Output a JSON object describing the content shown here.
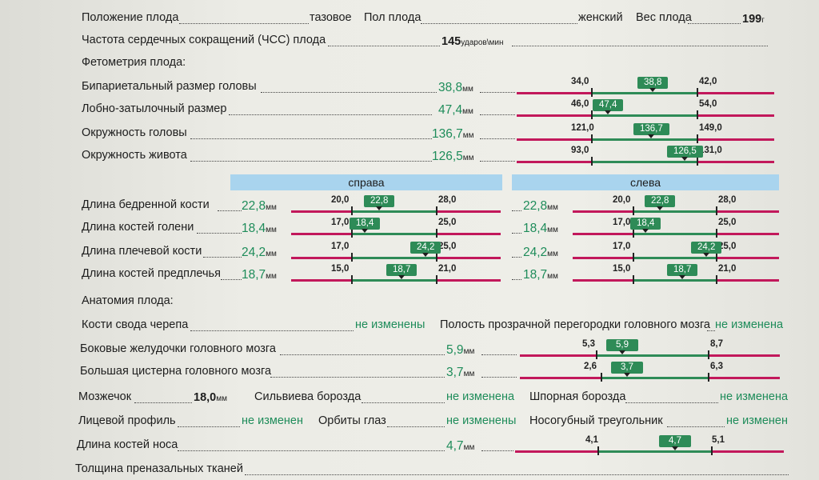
{
  "general": {
    "position_label": "Положение плода",
    "position_value": "тазовое",
    "sex_label": "Пол плода",
    "sex_value": "женский",
    "weight_label": "Вес плода",
    "weight_value": "199",
    "weight_unit": "г",
    "hr_label": "Частота сердечных сокращений (ЧСС) плода",
    "hr_value": "145",
    "hr_unit": "ударов\\мин",
    "fetometry_title": "Фетометрия плода:"
  },
  "fetometry": [
    {
      "label": "Бипариетальный размер головы",
      "value": "38,8",
      "unit": "мм",
      "min": "34,0",
      "max": "42,0",
      "mark": "38,8"
    },
    {
      "label": "Лобно-затылочный размер",
      "value": "47,4",
      "unit": "мм",
      "min": "46,0",
      "max": "54,0",
      "mark": "47,4"
    },
    {
      "label": "Окружность головы",
      "value": "136,7",
      "unit": "мм",
      "min": "121,0",
      "max": "149,0",
      "mark": "136,7"
    },
    {
      "label": "Окружность живота",
      "value": "126,5",
      "unit": "мм",
      "min": "93,0",
      "max": "131,0",
      "mark": "126,5"
    }
  ],
  "limbs": {
    "right_header": "справа",
    "left_header": "слева",
    "rows": [
      {
        "label": "Длина бедренной кости",
        "right": "22,8",
        "left": "22,8",
        "unit": "мм",
        "min": "20,0",
        "max": "28,0",
        "mark": "22,8"
      },
      {
        "label": "Длина костей голени",
        "right": "18,4",
        "left": "18,4",
        "unit": "мм",
        "min": "17,0",
        "max": "25,0",
        "mark": "18,4"
      },
      {
        "label": "Длина плечевой кости",
        "right": "24,2",
        "left": "24,2",
        "unit": "мм",
        "min": "17,0",
        "max": "25,0",
        "mark": "24,2"
      },
      {
        "label": "Длина костей предплечья",
        "right": "18,7",
        "left": "18,7",
        "unit": "мм",
        "min": "15,0",
        "max": "21,0",
        "mark": "18,7"
      }
    ]
  },
  "anatomy": {
    "title": "Анатомия плода:",
    "skull_label": "Кости свода черепа",
    "skull_value": "не изменены",
    "septum_label": "Полость прозрачной перегородки головного мозга",
    "septum_value": "не изменена",
    "ventricles_label": "Боковые желудочки головного мозга",
    "ventricles_value": "5,9",
    "ventricles_unit": "мм",
    "ventricles_min": "5,3",
    "ventricles_max": "8,7",
    "ventricles_mark": "5,9",
    "cistern_label": "Большая цистерна головного мозга",
    "cistern_value": "3,7",
    "cistern_unit": "мм",
    "cistern_min": "2,6",
    "cistern_max": "6,3",
    "cistern_mark": "3,7",
    "cerebellum_label": "Мозжечок",
    "cerebellum_value": "18,0",
    "cerebellum_unit": "мм",
    "sylvian_label": "Сильвиева борозда",
    "sylvian_value": "не изменена",
    "calcarine_label": "Шпорная борозда",
    "calcarine_value": "не изменена",
    "face_label": "Лицевой профиль",
    "face_value": "не изменен",
    "orbits_label": "Орбиты глаз",
    "orbits_value": "не изменены",
    "triangle_label": "Носогубный треугольник",
    "triangle_value": "не изменен",
    "nose_label": "Длина костей носа",
    "nose_value": "4,7",
    "nose_unit": "мм",
    "nose_min": "4,1",
    "nose_max": "5,1",
    "nose_mark": "4,7",
    "prenasal_label": "Толщина преназальных тканей"
  }
}
